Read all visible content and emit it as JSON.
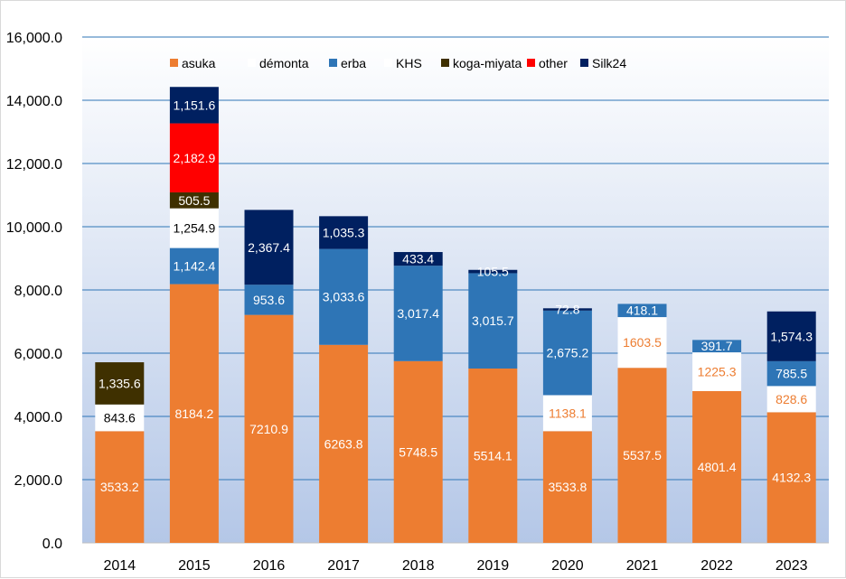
{
  "chart_data": {
    "type": "bar",
    "stacked": true,
    "title": "",
    "xlabel": "",
    "ylabel": "",
    "ylim": [
      0,
      16000
    ],
    "y_ticks": [
      "0.0",
      "2,000.0",
      "4,000.0",
      "6,000.0",
      "8,000.0",
      "10,000.0",
      "12,000.0",
      "14,000.0",
      "16,000.0"
    ],
    "y_tick_values": [
      0,
      2000,
      4000,
      6000,
      8000,
      10000,
      12000,
      14000,
      16000
    ],
    "grid": true,
    "legend_position": "top",
    "categories": [
      "2014",
      "2015",
      "2016",
      "2017",
      "2018",
      "2019",
      "2020",
      "2021",
      "2022",
      "2023"
    ],
    "series": [
      {
        "name": "asuka",
        "color": "#ed7d31",
        "label_color": "#ffffff",
        "values": [
          3533.2,
          8184.2,
          7210.9,
          6263.8,
          5748.5,
          5514.1,
          3533.8,
          5537.5,
          4801.4,
          4132.3
        ],
        "labels": [
          "3533.2",
          "8184.2",
          "7210.9",
          "6263.8",
          "5748.5",
          "5514.1",
          "3533.8",
          "5537.5",
          "4801.4",
          "4132.3"
        ]
      },
      {
        "name": "démonta",
        "color": "#ffffff",
        "label_color": "#ed7d31",
        "values": [
          0,
          0,
          0,
          0,
          0,
          0,
          1138.1,
          1603.5,
          1225.3,
          828.6
        ],
        "labels": [
          "",
          "",
          "",
          "",
          "",
          "",
          "1138.1",
          "1603.5",
          "1225.3",
          "828.6"
        ]
      },
      {
        "name": "erba",
        "color": "#2e75b6",
        "label_color": "#ffffff",
        "values": [
          0,
          1142.4,
          953.6,
          3033.6,
          3017.4,
          3015.7,
          2675.2,
          418.1,
          391.7,
          785.5
        ],
        "labels": [
          "",
          "1,142.4",
          "953.6",
          "3,033.6",
          "3,017.4",
          "3,015.7",
          "2,675.2",
          "418.1",
          "391.7",
          "785.5"
        ]
      },
      {
        "name": "KHS",
        "color": "#ffffff",
        "label_color": "#000000",
        "values": [
          843.6,
          1254.9,
          0,
          0,
          0,
          0,
          0,
          0,
          0,
          0
        ],
        "labels": [
          "843.6",
          "1,254.9",
          "",
          "",
          "",
          "",
          "",
          "",
          "",
          ""
        ]
      },
      {
        "name": "koga-miyata",
        "color": "#3f3000",
        "label_color": "#ffffff",
        "values": [
          1335.6,
          505.5,
          0,
          0,
          0,
          0,
          0,
          0,
          0,
          0
        ],
        "labels": [
          "1,335.6",
          "505.5",
          "",
          "",
          "",
          "",
          "",
          "",
          "",
          ""
        ]
      },
      {
        "name": "other",
        "color": "#ff0000",
        "label_color": "#ffffff",
        "values": [
          0,
          2182.9,
          0,
          0,
          0,
          0,
          0,
          0,
          0,
          0
        ],
        "labels": [
          "",
          "2,182.9",
          "",
          "",
          "",
          "",
          "",
          "",
          "",
          ""
        ]
      },
      {
        "name": "Silk24",
        "color": "#002060",
        "label_color": "#ffffff",
        "values": [
          0,
          1151.6,
          2367.4,
          1035.3,
          433.4,
          105.5,
          72.8,
          0,
          0,
          1574.3
        ],
        "labels": [
          "",
          "1,151.6",
          "2,367.4",
          "1,035.3",
          "433.4",
          "105.5",
          "72.8",
          "",
          "",
          "1,574.3"
        ]
      }
    ]
  }
}
